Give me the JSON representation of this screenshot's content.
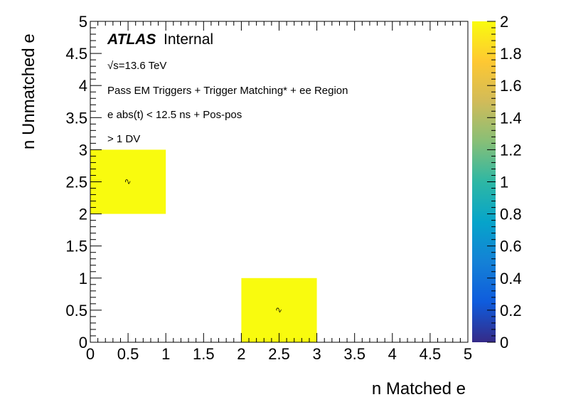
{
  "chart_data": {
    "type": "heatmap",
    "xlabel": "n Matched e",
    "ylabel": "n Unmatched e",
    "xlim": [
      0,
      5
    ],
    "ylim": [
      0,
      5
    ],
    "x_ticks": [
      "0",
      "0.5",
      "1",
      "1.5",
      "2",
      "2.5",
      "3",
      "3.5",
      "4",
      "4.5",
      "5"
    ],
    "y_ticks": [
      "0",
      "0.5",
      "1",
      "1.5",
      "2",
      "2.5",
      "3",
      "3.5",
      "4",
      "4.5",
      "5"
    ],
    "cells": [
      {
        "x0": 0,
        "x1": 1,
        "y0": 2,
        "y1": 3,
        "value": 2,
        "label": "2"
      },
      {
        "x0": 2,
        "x1": 3,
        "y0": 0,
        "y1": 1,
        "value": 2,
        "label": "2"
      }
    ],
    "colorbar": {
      "range": [
        0,
        2
      ],
      "ticks": [
        "0",
        "0.2",
        "0.4",
        "0.6",
        "0.8",
        "1",
        "1.2",
        "1.4",
        "1.6",
        "1.8",
        "2"
      ],
      "colors": [
        "#352a87",
        "#0f5cdd",
        "#1481d6",
        "#06a4ca",
        "#2eb7a4",
        "#87bf77",
        "#d1bb59",
        "#fec832",
        "#f9fb0e"
      ]
    },
    "annotations": {
      "atlas": "ATLAS",
      "internal": "Internal",
      "energy": "√s=13.6 TeV",
      "line1": "Pass EM Triggers + Trigger Matching* + ee Region",
      "line2": "e abs(t) < 12.5 ns + Pos-pos",
      "line3": "> 1 DV"
    },
    "grid": false
  }
}
